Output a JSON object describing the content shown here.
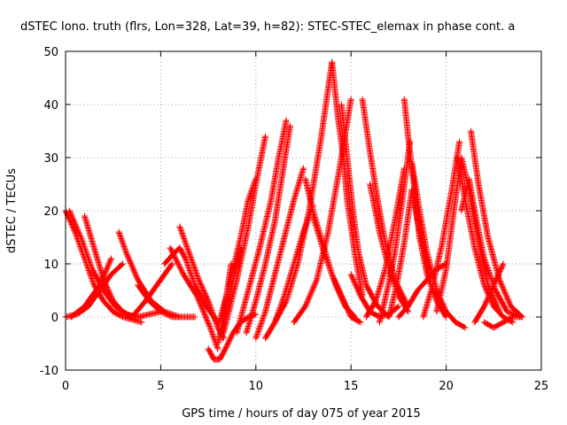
{
  "chart_data": {
    "type": "scatter",
    "title": "dSTEC Iono. truth (flrs, Lon=328, Lat=39, h=82): STEC-STEC_elemax in phase cont. a",
    "xlabel": "GPS time / hours of day 075 of year 2015",
    "ylabel": "dSTEC  / TECUs",
    "xlim": [
      0,
      25
    ],
    "ylim": [
      -10,
      50
    ],
    "x_ticks": [
      "0",
      "5",
      "10",
      "15",
      "20",
      "25"
    ],
    "y_ticks": [
      "-10",
      "0",
      "10",
      "20",
      "30",
      "40",
      "50"
    ],
    "grid": true,
    "marker": "plus",
    "color": "#ff0000",
    "series": [
      {
        "x": [
          0.0,
          0.5,
          1.0,
          1.5,
          2.0,
          2.5,
          3.0,
          3.5,
          4.0
        ],
        "y": [
          20,
          16,
          11,
          6,
          3,
          1,
          0,
          -0.5,
          -1
        ]
      },
      {
        "x": [
          0.2,
          0.8,
          1.4,
          2.0,
          2.6,
          3.2,
          3.8,
          4.4,
          5.0
        ],
        "y": [
          20,
          15,
          9,
          5,
          2,
          0.5,
          0,
          0.5,
          1
        ]
      },
      {
        "x": [
          0.0,
          0.6,
          1.2,
          1.8,
          2.4,
          3.0
        ],
        "y": [
          0,
          0.5,
          2,
          5,
          8,
          10
        ]
      },
      {
        "x": [
          0.3,
          1.0,
          1.8,
          2.4
        ],
        "y": [
          0,
          2,
          6,
          11
        ]
      },
      {
        "x": [
          1.0,
          1.5,
          2.0,
          2.5,
          3.0,
          3.5,
          4.0
        ],
        "y": [
          19,
          13,
          7,
          3,
          1,
          0,
          0
        ]
      },
      {
        "x": [
          2.8,
          3.2,
          3.8,
          4.5,
          5.2,
          6.0
        ],
        "y": [
          16,
          12,
          7,
          3,
          1,
          0
        ]
      },
      {
        "x": [
          3.8,
          4.4,
          5.0,
          5.6,
          6.2,
          6.8
        ],
        "y": [
          6,
          3,
          1,
          0,
          0,
          0
        ]
      },
      {
        "x": [
          3.5,
          4.2,
          5.0,
          5.6
        ],
        "y": [
          0,
          3,
          7,
          10
        ]
      },
      {
        "x": [
          5.2,
          5.7,
          6.0,
          6.3,
          6.8,
          7.4,
          8.0
        ],
        "y": [
          10,
          12,
          13,
          11,
          6,
          2,
          -1
        ]
      },
      {
        "x": [
          6.0,
          6.5,
          7.0,
          7.5,
          8.0,
          8.3
        ],
        "y": [
          17,
          12,
          7,
          3,
          -2,
          -4
        ]
      },
      {
        "x": [
          5.5,
          6.2,
          6.9,
          7.6,
          8.0
        ],
        "y": [
          13,
          8,
          4,
          -2,
          -6
        ]
      },
      {
        "x": [
          7.5,
          7.8,
          8.1,
          8.4,
          8.8,
          9.2,
          9.6,
          10.0
        ],
        "y": [
          -6,
          -8,
          -8,
          -6,
          -3,
          -1,
          0,
          0.5
        ]
      },
      {
        "x": [
          8.0,
          8.2,
          8.5,
          8.7
        ],
        "y": [
          -5,
          -2,
          5,
          10
        ]
      },
      {
        "x": [
          8.2,
          8.5,
          8.9,
          9.2
        ],
        "y": [
          -4,
          3,
          8,
          13
        ]
      },
      {
        "x": [
          8.0,
          8.6,
          9.2,
          9.6,
          10.0
        ],
        "y": [
          -2,
          6,
          15,
          22,
          26
        ]
      },
      {
        "x": [
          8.3,
          9.0,
          9.6,
          10.0,
          10.5
        ],
        "y": [
          -3,
          7,
          17,
          25,
          34
        ]
      },
      {
        "x": [
          9.0,
          9.6,
          10.2,
          10.8,
          11.2,
          11.6
        ],
        "y": [
          -3,
          5,
          13,
          22,
          30,
          37
        ]
      },
      {
        "x": [
          9.5,
          10.0,
          10.5,
          11.0,
          11.4,
          11.8
        ],
        "y": [
          -3,
          3,
          10,
          18,
          27,
          36
        ]
      },
      {
        "x": [
          10.0,
          10.5,
          11.0,
          11.5,
          12.0,
          12.5
        ],
        "y": [
          -4,
          1,
          8,
          15,
          22,
          28
        ]
      },
      {
        "x": [
          10.5,
          11.0,
          11.5,
          12.0,
          12.5,
          13.0
        ],
        "y": [
          -4,
          -1,
          4,
          10,
          16,
          21
        ]
      },
      {
        "x": [
          11.0,
          11.6,
          12.2,
          12.8,
          13.4,
          14.0
        ],
        "y": [
          -1,
          3,
          10,
          20,
          33,
          48
        ]
      },
      {
        "x": [
          12.0,
          12.6,
          13.2,
          13.8,
          14.4,
          15.0
        ],
        "y": [
          -1,
          2,
          7,
          16,
          28,
          41
        ]
      },
      {
        "x": [
          12.6,
          13.0,
          13.5,
          14.0,
          14.5,
          15.0,
          15.5
        ],
        "y": [
          26,
          20,
          14,
          8,
          4,
          0,
          -1
        ]
      },
      {
        "x": [
          14.0,
          14.3,
          14.6,
          14.8,
          15.2,
          15.6
        ],
        "y": [
          48,
          38,
          30,
          22,
          12,
          4
        ]
      },
      {
        "x": [
          14.5,
          14.8,
          15.1,
          15.4,
          15.8,
          16.4,
          17.0
        ],
        "y": [
          40,
          30,
          20,
          12,
          6,
          2,
          0
        ]
      },
      {
        "x": [
          13.0,
          13.6,
          14.2,
          14.7,
          15.2
        ],
        "y": [
          19,
          12,
          6,
          2,
          0
        ]
      },
      {
        "x": [
          15.0,
          15.5,
          16.0,
          16.5,
          17.0,
          17.5
        ],
        "y": [
          8,
          4,
          1,
          0,
          0.5,
          2
        ]
      },
      {
        "x": [
          15.6,
          16.0,
          16.4,
          16.8,
          17.3,
          18.0
        ],
        "y": [
          41,
          31,
          22,
          14,
          7,
          2
        ]
      },
      {
        "x": [
          16.0,
          16.5,
          17.0,
          17.5,
          18.0
        ],
        "y": [
          25,
          16,
          9,
          4,
          1
        ]
      },
      {
        "x": [
          15.8,
          16.3,
          16.8,
          17.3,
          17.8
        ],
        "y": [
          0,
          3,
          9,
          18,
          28
        ]
      },
      {
        "x": [
          16.5,
          16.9,
          17.3,
          17.7,
          18.1
        ],
        "y": [
          -1,
          5,
          12,
          22,
          33
        ]
      },
      {
        "x": [
          17.0,
          17.4,
          17.8,
          18.2,
          18.6,
          19.2,
          20.0
        ],
        "y": [
          0,
          6,
          14,
          24,
          16,
          6,
          0
        ]
      },
      {
        "x": [
          17.8,
          18.0,
          18.3,
          18.6,
          19.0,
          19.5,
          20.0
        ],
        "y": [
          41,
          34,
          25,
          15,
          8,
          3,
          0
        ]
      },
      {
        "x": [
          18.2,
          18.6,
          19.0,
          19.5,
          20.0,
          20.5,
          21.0
        ],
        "y": [
          29,
          20,
          12,
          5,
          1,
          -1,
          -2
        ]
      },
      {
        "x": [
          17.5,
          18.0,
          18.5,
          19.0,
          19.5,
          20.0
        ],
        "y": [
          0,
          2,
          5,
          7,
          9,
          10
        ]
      },
      {
        "x": [
          18.8,
          19.3,
          19.8,
          20.3,
          20.7
        ],
        "y": [
          0,
          6,
          14,
          24,
          33
        ]
      },
      {
        "x": [
          19.5,
          20.0,
          20.4,
          20.8,
          21.2,
          21.7,
          22.2,
          22.8
        ],
        "y": [
          1,
          9,
          20,
          30,
          24,
          14,
          6,
          1
        ]
      },
      {
        "x": [
          20.6,
          21.0,
          21.5,
          22.0,
          22.5,
          23.0,
          23.5
        ],
        "y": [
          30,
          22,
          13,
          6,
          2,
          0,
          -1
        ]
      },
      {
        "x": [
          20.8,
          21.2,
          21.6,
          22.0,
          22.6,
          23.2,
          24.0
        ],
        "y": [
          20,
          26,
          18,
          11,
          5,
          1,
          0
        ]
      },
      {
        "x": [
          21.3,
          21.7,
          22.2,
          22.8,
          23.4,
          24.0
        ],
        "y": [
          35,
          25,
          15,
          7,
          2,
          0
        ]
      },
      {
        "x": [
          21.5,
          22.0,
          22.5,
          23.0
        ],
        "y": [
          -1,
          2,
          6,
          10
        ]
      },
      {
        "x": [
          22.0,
          22.5,
          23.0,
          23.5,
          24.0
        ],
        "y": [
          -1,
          -2,
          -1,
          0,
          0
        ]
      }
    ]
  }
}
